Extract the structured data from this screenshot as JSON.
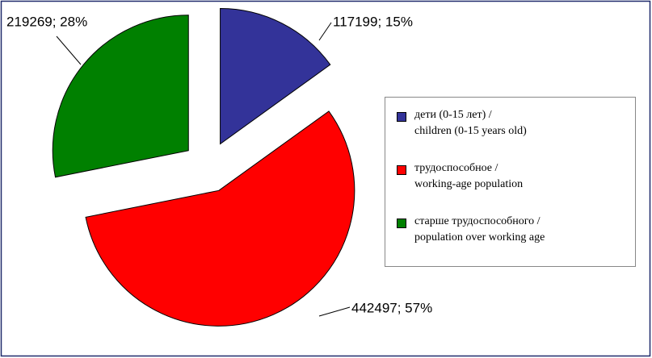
{
  "chart_data": {
    "type": "pie",
    "categories": [
      "дети (0-15 лет) /\nchildren (0-15 years old)",
      "трудоспособное /\nworking-age population",
      "старше трудоспособного /\npopulation over working age"
    ],
    "values": [
      117199,
      442497,
      219269
    ],
    "value_labels": [
      "117199; 15%",
      "442497; 57%",
      "219269; 28%"
    ],
    "colors": [
      "#333399",
      "#ff0000",
      "#008000"
    ],
    "legend": "right"
  }
}
